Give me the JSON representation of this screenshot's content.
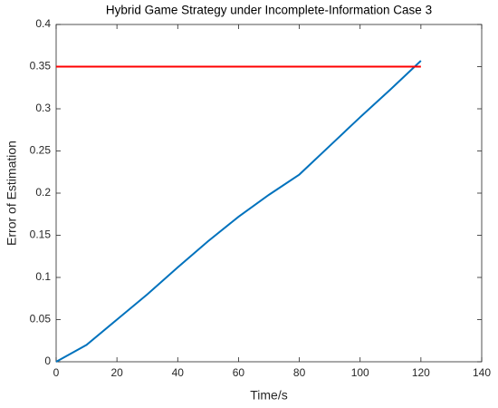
{
  "chart_data": {
    "type": "line",
    "title": "Hybrid Game Strategy under Incomplete-Information Case 3",
    "x_label": "Time/s",
    "y_label": "Error of Estimation",
    "xlim": [
      0,
      140
    ],
    "xticks": [
      0,
      20,
      40,
      60,
      80,
      100,
      120,
      140
    ],
    "ylim": [
      0,
      0.4
    ],
    "yticks": [
      0,
      0.05,
      0.1,
      0.15,
      0.2,
      0.25,
      0.3,
      0.35,
      0.4
    ],
    "grid": false,
    "series": [
      {
        "color": "#0072bd",
        "x": [
          0,
          10,
          20,
          30,
          40,
          50,
          60,
          70,
          80,
          90,
          100,
          110,
          120
        ],
        "values": [
          0,
          0.02,
          0.05,
          0.08,
          0.112,
          0.143,
          0.172,
          0.198,
          0.222,
          0.256,
          0.29,
          0.323,
          0.357
        ]
      },
      {
        "color": "#ff0000",
        "x": [
          0,
          120
        ],
        "values": [
          0.35,
          0.35
        ]
      }
    ]
  }
}
